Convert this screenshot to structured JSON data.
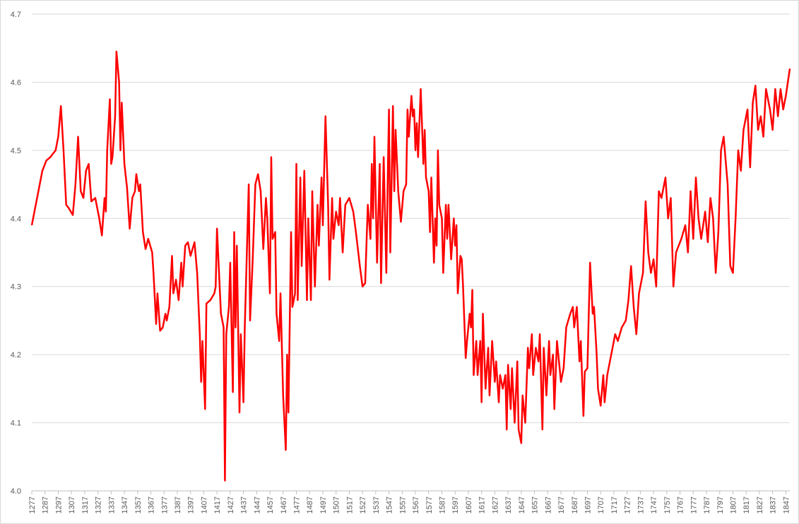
{
  "chart_data": {
    "type": "line",
    "color": "#ff0000",
    "grid": true,
    "x": [
      1277,
      1280,
      1282,
      1285,
      1288,
      1291,
      1295,
      1297,
      1299,
      1301,
      1303,
      1305,
      1308,
      1310,
      1312,
      1314,
      1316,
      1318,
      1320,
      1322,
      1325,
      1328,
      1330,
      1332,
      1333,
      1334,
      1336,
      1337,
      1338,
      1340,
      1341,
      1343,
      1344,
      1345,
      1347,
      1349,
      1351,
      1353,
      1355,
      1356,
      1358,
      1359,
      1361,
      1363,
      1365,
      1368,
      1369,
      1371,
      1372,
      1374,
      1376,
      1378,
      1379,
      1381,
      1383,
      1384,
      1386,
      1388,
      1390,
      1391,
      1393,
      1395,
      1397,
      1400,
      1402,
      1404,
      1405,
      1406,
      1408,
      1409,
      1412,
      1415,
      1416,
      1417,
      1419,
      1420,
      1422,
      1423,
      1424,
      1426,
      1427,
      1429,
      1430,
      1431,
      1432,
      1434,
      1435,
      1437,
      1438,
      1441,
      1442,
      1444,
      1446,
      1448,
      1450,
      1452,
      1454,
      1455,
      1457,
      1458,
      1459,
      1461,
      1462,
      1464,
      1465,
      1467,
      1469,
      1470,
      1471,
      1473,
      1474,
      1476,
      1477,
      1478,
      1480,
      1481,
      1483,
      1485,
      1486,
      1488,
      1489,
      1491,
      1493,
      1494,
      1496,
      1497,
      1499,
      1501,
      1502,
      1504,
      1505,
      1507,
      1509,
      1510,
      1512,
      1514,
      1517,
      1520,
      1522,
      1525,
      1527,
      1529,
      1531,
      1533,
      1534,
      1535,
      1536,
      1538,
      1540,
      1541,
      1543,
      1545,
      1546,
      1547,
      1548,
      1550,
      1551,
      1552,
      1554,
      1556,
      1558,
      1560,
      1561,
      1562,
      1564,
      1565,
      1566,
      1567,
      1568,
      1569,
      1571,
      1573,
      1574,
      1575,
      1577,
      1578,
      1579,
      1581,
      1582,
      1583,
      1584,
      1585,
      1587,
      1588,
      1590,
      1591,
      1592,
      1594,
      1596,
      1597,
      1598,
      1599,
      1601,
      1602,
      1603,
      1605,
      1606,
      1608,
      1609,
      1610,
      1611,
      1613,
      1614,
      1616,
      1617,
      1618,
      1620,
      1622,
      1623,
      1625,
      1627,
      1628,
      1630,
      1631,
      1633,
      1635,
      1636,
      1637,
      1639,
      1640,
      1642,
      1644,
      1645,
      1647,
      1648,
      1650,
      1652,
      1653,
      1655,
      1656,
      1658,
      1660,
      1661,
      1663,
      1664,
      1666,
      1668,
      1669,
      1671,
      1672,
      1674,
      1676,
      1677,
      1679,
      1681,
      1684,
      1686,
      1687,
      1689,
      1691,
      1692,
      1694,
      1695,
      1697,
      1699,
      1701,
      1702,
      1704,
      1705,
      1707,
      1709,
      1710,
      1712,
      1715,
      1718,
      1720,
      1723,
      1726,
      1728,
      1730,
      1732,
      1734,
      1736,
      1739,
      1741,
      1743,
      1745,
      1747,
      1749,
      1751,
      1753,
      1756,
      1758,
      1760,
      1762,
      1764,
      1766,
      1768,
      1771,
      1773,
      1775,
      1777,
      1779,
      1781,
      1783,
      1786,
      1788,
      1790,
      1792,
      1794,
      1796,
      1798,
      1800,
      1803,
      1805,
      1807,
      1809,
      1811,
      1813,
      1815,
      1818,
      1820,
      1822,
      1824,
      1826,
      1828,
      1830,
      1832,
      1835,
      1837,
      1839,
      1841,
      1843,
      1845,
      1847,
      1850
    ],
    "values": [
      4.39,
      4.42,
      4.44,
      4.47,
      4.485,
      4.49,
      4.5,
      4.52,
      4.565,
      4.5,
      4.42,
      4.415,
      4.405,
      4.45,
      4.52,
      4.44,
      4.43,
      4.47,
      4.48,
      4.425,
      4.43,
      4.4,
      4.375,
      4.43,
      4.41,
      4.5,
      4.575,
      4.48,
      4.49,
      4.55,
      4.645,
      4.6,
      4.5,
      4.57,
      4.48,
      4.445,
      4.385,
      4.43,
      4.44,
      4.465,
      4.44,
      4.45,
      4.38,
      4.355,
      4.37,
      4.35,
      4.32,
      4.245,
      4.29,
      4.235,
      4.24,
      4.26,
      4.25,
      4.27,
      4.345,
      4.29,
      4.31,
      4.28,
      4.335,
      4.3,
      4.36,
      4.365,
      4.345,
      4.365,
      4.32,
      4.23,
      4.16,
      4.22,
      4.12,
      4.275,
      4.28,
      4.29,
      4.3,
      4.385,
      4.3,
      4.26,
      4.24,
      4.015,
      4.23,
      4.27,
      4.335,
      4.145,
      4.38,
      4.24,
      4.36,
      4.115,
      4.23,
      4.13,
      4.24,
      4.45,
      4.25,
      4.34,
      4.45,
      4.465,
      4.44,
      4.355,
      4.43,
      4.4,
      4.29,
      4.49,
      4.37,
      4.38,
      4.26,
      4.22,
      4.29,
      4.14,
      4.06,
      4.2,
      4.115,
      4.38,
      4.27,
      4.29,
      4.48,
      4.28,
      4.46,
      4.33,
      4.47,
      4.28,
      4.4,
      4.28,
      4.44,
      4.3,
      4.42,
      4.36,
      4.46,
      4.39,
      4.55,
      4.42,
      4.31,
      4.43,
      4.37,
      4.41,
      4.39,
      4.43,
      4.35,
      4.42,
      4.43,
      4.41,
      4.38,
      4.33,
      4.3,
      4.305,
      4.42,
      4.37,
      4.48,
      4.4,
      4.52,
      4.335,
      4.48,
      4.305,
      4.49,
      4.32,
      4.45,
      4.56,
      4.35,
      4.565,
      4.44,
      4.53,
      4.44,
      4.395,
      4.44,
      4.45,
      4.56,
      4.52,
      4.58,
      4.55,
      4.56,
      4.5,
      4.54,
      4.49,
      4.59,
      4.48,
      4.53,
      4.46,
      4.44,
      4.38,
      4.46,
      4.335,
      4.4,
      4.36,
      4.5,
      4.42,
      4.4,
      4.32,
      4.42,
      4.37,
      4.42,
      4.34,
      4.4,
      4.36,
      4.39,
      4.29,
      4.345,
      4.34,
      4.3,
      4.195,
      4.22,
      4.26,
      4.24,
      4.295,
      4.17,
      4.22,
      4.17,
      4.22,
      4.13,
      4.26,
      4.15,
      4.21,
      4.14,
      4.22,
      4.16,
      4.19,
      4.13,
      4.17,
      4.15,
      4.17,
      4.09,
      4.185,
      4.12,
      4.18,
      4.1,
      4.19,
      4.09,
      4.07,
      4.14,
      4.1,
      4.21,
      4.18,
      4.23,
      4.17,
      4.21,
      4.19,
      4.23,
      4.09,
      4.21,
      4.14,
      4.22,
      4.17,
      4.2,
      4.12,
      4.22,
      4.18,
      4.16,
      4.18,
      4.24,
      4.26,
      4.27,
      4.24,
      4.27,
      4.19,
      4.22,
      4.11,
      4.175,
      4.18,
      4.335,
      4.26,
      4.27,
      4.2,
      4.15,
      4.125,
      4.17,
      4.13,
      4.17,
      4.2,
      4.23,
      4.22,
      4.24,
      4.25,
      4.28,
      4.33,
      4.27,
      4.23,
      4.29,
      4.32,
      4.425,
      4.35,
      4.32,
      4.34,
      4.3,
      4.44,
      4.43,
      4.46,
      4.4,
      4.43,
      4.3,
      4.35,
      4.36,
      4.37,
      4.39,
      4.35,
      4.44,
      4.37,
      4.46,
      4.4,
      4.37,
      4.41,
      4.365,
      4.43,
      4.4,
      4.32,
      4.38,
      4.5,
      4.52,
      4.45,
      4.33,
      4.32,
      4.4,
      4.5,
      4.47,
      4.53,
      4.56,
      4.475,
      4.57,
      4.595,
      4.53,
      4.55,
      4.52,
      4.59,
      4.56,
      4.53,
      4.59,
      4.55,
      4.59,
      4.56,
      4.58,
      4.62
    ],
    "xlim": [
      1277,
      1850
    ],
    "xticks": [
      1277,
      1287,
      1297,
      1307,
      1317,
      1327,
      1337,
      1347,
      1357,
      1367,
      1377,
      1387,
      1397,
      1407,
      1417,
      1427,
      1437,
      1447,
      1457,
      1467,
      1477,
      1487,
      1497,
      1507,
      1517,
      1527,
      1537,
      1547,
      1557,
      1567,
      1577,
      1587,
      1597,
      1607,
      1617,
      1627,
      1637,
      1647,
      1657,
      1667,
      1677,
      1687,
      1697,
      1707,
      1717,
      1727,
      1737,
      1747,
      1757,
      1767,
      1777,
      1787,
      1797,
      1807,
      1817,
      1827,
      1837,
      1847
    ],
    "ylim": [
      4.0,
      4.7
    ],
    "yticks": [
      {
        "value": 4.0,
        "label": "4.0"
      },
      4.1,
      4.2,
      4.3,
      4.4,
      4.5,
      4.6,
      4.7
    ]
  }
}
